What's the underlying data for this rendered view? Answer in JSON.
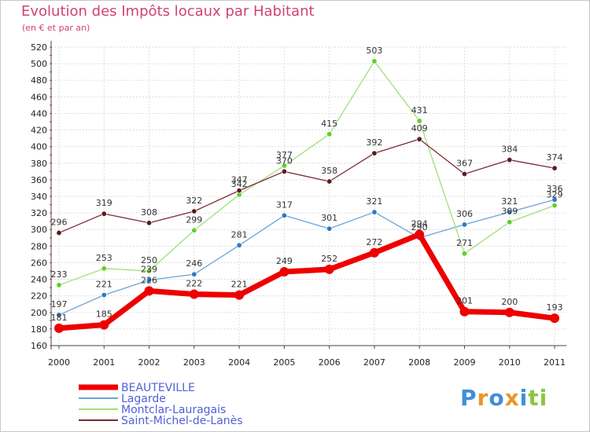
{
  "chart_data": {
    "type": "line",
    "title": "Evolution des Impôts locaux par Habitant",
    "subtitle": "(en € et par an)",
    "xlabel": "",
    "ylabel": "",
    "x": [
      "2000",
      "2001",
      "2002",
      "2003",
      "2004",
      "2005",
      "2006",
      "2007",
      "2008",
      "2009",
      "2010",
      "2011"
    ],
    "ylim": [
      160,
      520
    ],
    "yticks": [
      160,
      180,
      200,
      220,
      240,
      260,
      280,
      300,
      320,
      340,
      360,
      380,
      400,
      420,
      440,
      460,
      480,
      500,
      520
    ],
    "grid": true,
    "legend_position": "bottom-left",
    "series": [
      {
        "name": "BEAUTEVILLE",
        "color": "#ee0000",
        "emphasis": true,
        "values": [
          181,
          185,
          226,
          222,
          221,
          249,
          252,
          272,
          294,
          201,
          200,
          193
        ]
      },
      {
        "name": "Lagarde",
        "color": "#6aa4d6",
        "emphasis": false,
        "values": [
          197,
          221,
          239,
          246,
          281,
          317,
          301,
          321,
          290,
          306,
          321,
          336
        ]
      },
      {
        "name": "Montclar-Lauragais",
        "color": "#9fe07a",
        "emphasis": false,
        "values": [
          233,
          253,
          250,
          299,
          342,
          377,
          415,
          503,
          431,
          271,
          309,
          329
        ]
      },
      {
        "name": "Saint-Michel-de-Lanès",
        "color": "#7a2b36",
        "emphasis": false,
        "values": [
          296,
          319,
          308,
          322,
          347,
          370,
          358,
          392,
          409,
          367,
          384,
          374
        ]
      }
    ],
    "dot_colors": {
      "Lagarde": "#2f78c8",
      "Montclar-Lauragais": "#5fcf28",
      "Saint-Michel-de-Lanès": "#5c1a22"
    }
  },
  "logo": {
    "text": "Proxiti",
    "letters": [
      "P",
      "r",
      "o",
      "x",
      "i",
      "t",
      "i"
    ],
    "colors": [
      "#3f8fd8",
      "#e8962a",
      "#3f8fd8",
      "#e8962a",
      "#3f8fd8",
      "#8cc63f",
      "#8cc63f"
    ]
  }
}
